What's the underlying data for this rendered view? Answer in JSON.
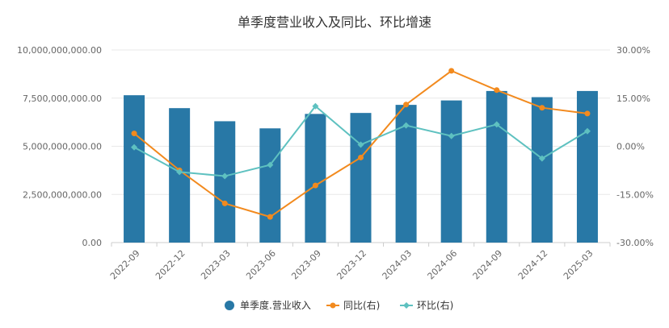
{
  "chart_data": {
    "type": "bar",
    "title": "单季度营业收入及同比、环比增速",
    "categories": [
      "2022-09",
      "2022-12",
      "2023-03",
      "2023-06",
      "2023-09",
      "2023-12",
      "2024-03",
      "2024-06",
      "2024-09",
      "2024-12",
      "2025-03"
    ],
    "y_left": {
      "ticks": [
        "0.00",
        "2,500,000,000.00",
        "5,000,000,000.00",
        "7,500,000,000.00",
        "10,000,000,000.00"
      ],
      "range": [
        0,
        10000000000
      ]
    },
    "y_right": {
      "ticks": [
        "-30.00%",
        "-15.00%",
        "0.00%",
        "15.00%",
        "30.00%"
      ],
      "range": [
        -30,
        30
      ]
    },
    "series": [
      {
        "name": "单季度.营业收入",
        "type": "bar",
        "axis": "left",
        "color": "#2878a6",
        "values": [
          7650000000,
          6980000000,
          6300000000,
          5930000000,
          6680000000,
          6730000000,
          7150000000,
          7380000000,
          7870000000,
          7550000000,
          7870000000
        ]
      },
      {
        "name": "同比(右)",
        "type": "line",
        "axis": "right",
        "color": "#f28a1e",
        "values": [
          4.0,
          -7.5,
          -17.8,
          -22.0,
          -12.2,
          -3.5,
          13.0,
          23.5,
          17.5,
          12.0,
          10.2
        ]
      },
      {
        "name": "环比(右)",
        "type": "line",
        "axis": "right",
        "color": "#5ec1c0",
        "values": [
          -0.3,
          -8.0,
          -9.3,
          -5.8,
          12.5,
          0.5,
          6.5,
          3.2,
          6.8,
          -3.8,
          4.7
        ]
      }
    ],
    "grid": true,
    "legend_position": "bottom"
  }
}
